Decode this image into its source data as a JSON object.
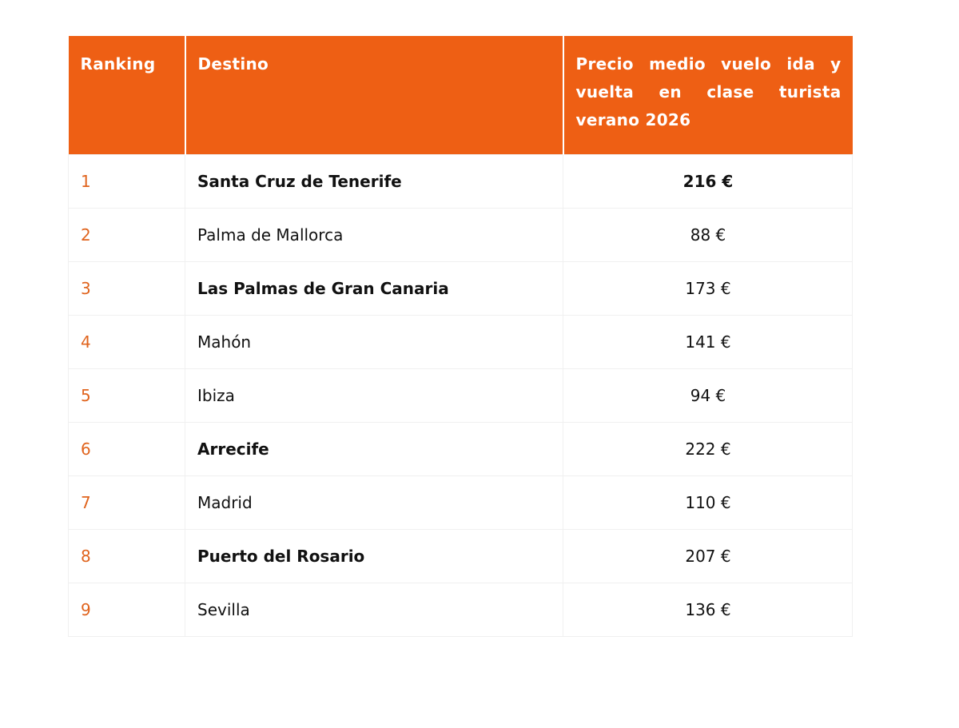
{
  "table": {
    "header": [
      "Ranking",
      "Destino",
      "Precio medio vuelo ida y vuelta en clase turista verano 2026"
    ],
    "rows": [
      [
        "1",
        "Santa Cruz de Tenerife",
        "216 €"
      ],
      [
        "2",
        "Palma de Mallorca",
        "88 €"
      ],
      [
        "3",
        "Las Palmas de Gran Canaria",
        "173 €"
      ],
      [
        "4",
        "Mahón",
        "141 €"
      ],
      [
        "5",
        "Ibiza",
        "94 €"
      ],
      [
        "6",
        "Arrecife",
        "222 €"
      ],
      [
        "7",
        "Madrid",
        "110 €"
      ],
      [
        "8",
        "Puerto del Rosario",
        "207 €"
      ],
      [
        "9",
        "Sevilla",
        "136 €"
      ]
    ]
  }
}
